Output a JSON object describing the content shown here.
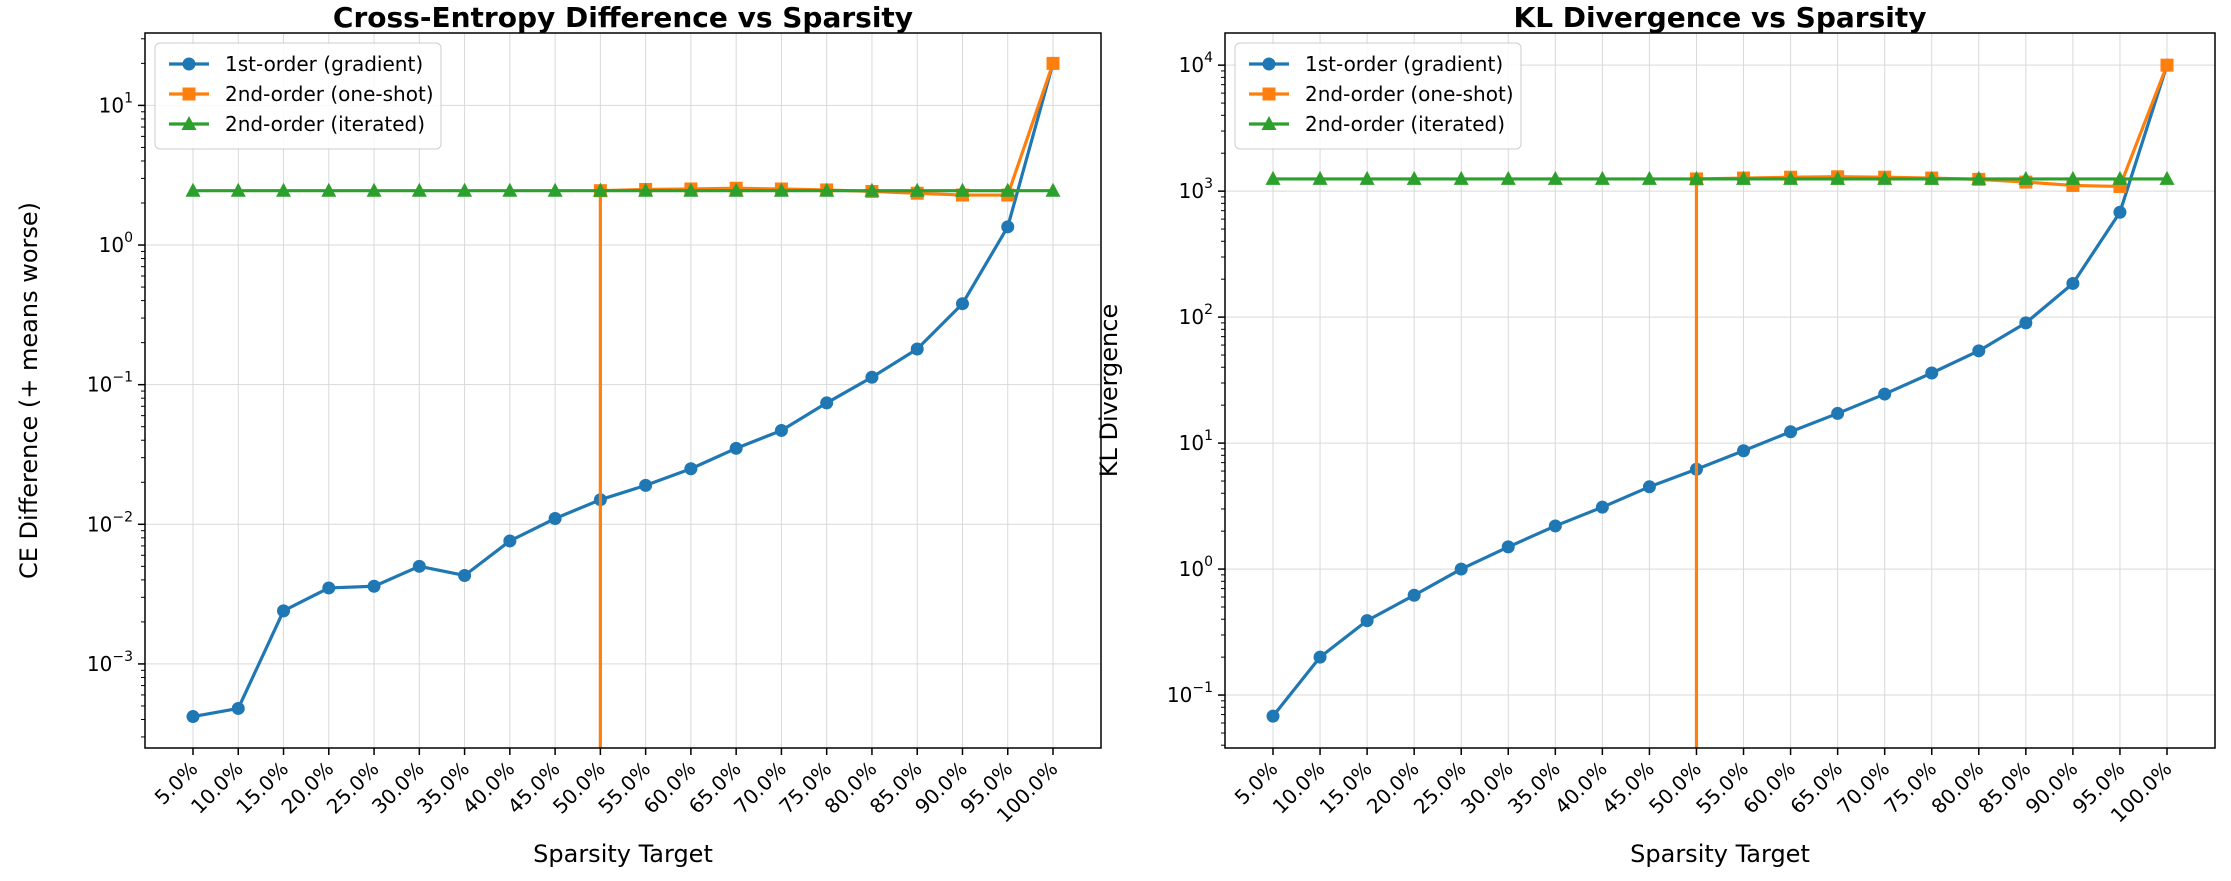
{
  "colors": {
    "first_order": "#1f77b4",
    "second_one_shot": "#ff7f0e",
    "second_iterated": "#2ca02c"
  },
  "chart_data": [
    {
      "type": "line",
      "title": "Cross-Entropy Difference vs Sparsity",
      "xlabel": "Sparsity Target",
      "ylabel": "CE Difference (+ means worse)",
      "yscale": "log",
      "ylim": [
        0.00025,
        33
      ],
      "y_ticks": [
        {
          "base": "10",
          "exp": "-3",
          "value": 0.001
        },
        {
          "base": "10",
          "exp": "-2",
          "value": 0.01
        },
        {
          "base": "10",
          "exp": "-1",
          "value": 0.1
        },
        {
          "base": "10",
          "exp": "0",
          "value": 1
        },
        {
          "base": "10",
          "exp": "1",
          "value": 10
        }
      ],
      "categories": [
        "5.0%",
        "10.0%",
        "15.0%",
        "20.0%",
        "25.0%",
        "30.0%",
        "35.0%",
        "40.0%",
        "45.0%",
        "50.0%",
        "55.0%",
        "60.0%",
        "65.0%",
        "70.0%",
        "75.0%",
        "80.0%",
        "85.0%",
        "90.0%",
        "95.0%",
        "100.0%"
      ],
      "grid": true,
      "legend": "top-left",
      "series": [
        {
          "name": "1st-order (gradient)",
          "color_key": "first_order",
          "marker": "circle",
          "values": [
            0.00042,
            0.00048,
            0.0024,
            0.0035,
            0.0036,
            0.005,
            0.0043,
            0.0076,
            0.011,
            0.015,
            0.019,
            0.025,
            0.035,
            0.047,
            0.074,
            0.113,
            0.18,
            0.38,
            1.35,
            20.0
          ]
        },
        {
          "name": "2nd-order (one-shot)",
          "color_key": "second_one_shot",
          "marker": "square",
          "values": [
            null,
            null,
            null,
            null,
            null,
            null,
            null,
            null,
            null,
            2.45,
            2.5,
            2.52,
            2.55,
            2.52,
            2.48,
            2.42,
            2.35,
            2.28,
            2.28,
            20.0
          ],
          "drop_to_axis_at": 9
        },
        {
          "name": "2nd-order (iterated)",
          "color_key": "second_iterated",
          "marker": "triangle",
          "values": [
            2.45,
            2.45,
            2.45,
            2.45,
            2.45,
            2.45,
            2.45,
            2.45,
            2.45,
            2.45,
            2.45,
            2.45,
            2.45,
            2.45,
            2.45,
            2.45,
            2.45,
            2.45,
            2.45,
            2.45
          ]
        }
      ]
    },
    {
      "type": "line",
      "title": "KL Divergence vs Sparsity",
      "xlabel": "Sparsity Target",
      "ylabel": "KL Divergence",
      "yscale": "log",
      "ylim": [
        0.038,
        18000
      ],
      "y_ticks": [
        {
          "base": "10",
          "exp": "-1",
          "value": 0.1
        },
        {
          "base": "10",
          "exp": "0",
          "value": 1
        },
        {
          "base": "10",
          "exp": "1",
          "value": 10
        },
        {
          "base": "10",
          "exp": "2",
          "value": 100
        },
        {
          "base": "10",
          "exp": "3",
          "value": 1000
        },
        {
          "base": "10",
          "exp": "4",
          "value": 10000
        }
      ],
      "categories": [
        "5.0%",
        "10.0%",
        "15.0%",
        "20.0%",
        "25.0%",
        "30.0%",
        "35.0%",
        "40.0%",
        "45.0%",
        "50.0%",
        "55.0%",
        "60.0%",
        "65.0%",
        "70.0%",
        "75.0%",
        "80.0%",
        "85.0%",
        "90.0%",
        "95.0%",
        "100.0%"
      ],
      "grid": true,
      "legend": "top-left",
      "series": [
        {
          "name": "1st-order (gradient)",
          "color_key": "first_order",
          "marker": "circle",
          "values": [
            0.068,
            0.2,
            0.39,
            0.62,
            1.0,
            1.5,
            2.2,
            3.1,
            4.5,
            6.2,
            8.7,
            12.3,
            17.2,
            24.5,
            36.0,
            54.0,
            90.0,
            185.0,
            680.0,
            10000.0
          ]
        },
        {
          "name": "2nd-order (one-shot)",
          "color_key": "second_one_shot",
          "marker": "square",
          "values": [
            null,
            null,
            null,
            null,
            null,
            null,
            null,
            null,
            null,
            1250,
            1270,
            1290,
            1300,
            1290,
            1270,
            1240,
            1180,
            1110,
            1090,
            10000.0
          ],
          "drop_to_axis_at": 9
        },
        {
          "name": "2nd-order (iterated)",
          "color_key": "second_iterated",
          "marker": "triangle",
          "values": [
            1250,
            1250,
            1250,
            1250,
            1250,
            1250,
            1250,
            1250,
            1250,
            1250,
            1250,
            1250,
            1250,
            1250,
            1250,
            1250,
            1250,
            1250,
            1250,
            1250
          ]
        }
      ]
    }
  ]
}
